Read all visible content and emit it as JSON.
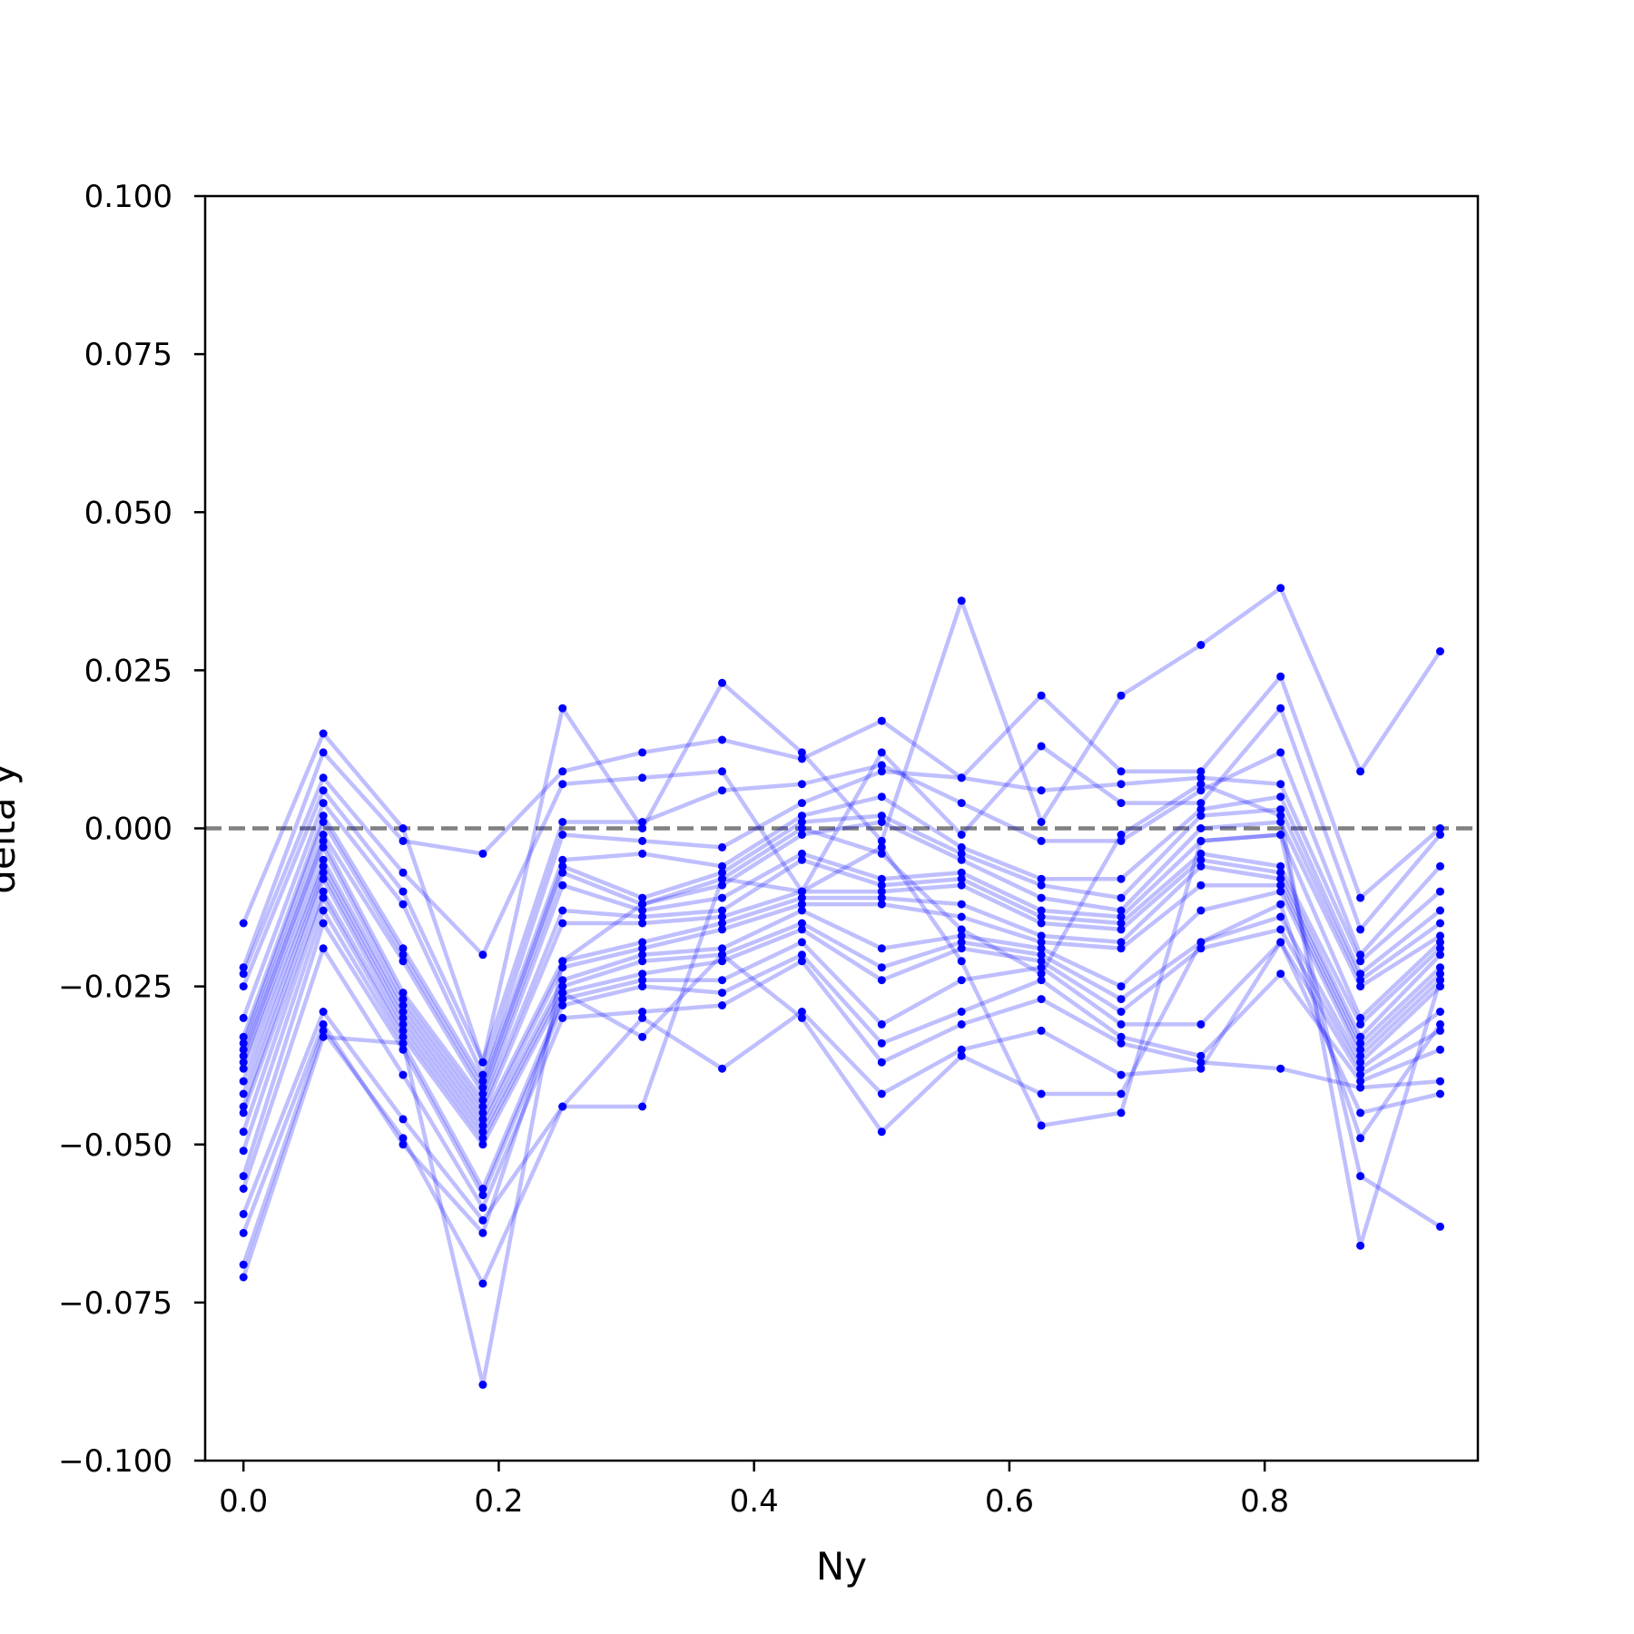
{
  "chart_data": {
    "type": "line",
    "title": "",
    "xlabel": "Ny",
    "ylabel": "delta y",
    "xlim": [
      -0.03,
      0.967
    ],
    "ylim": [
      -0.1,
      0.1
    ],
    "xticks": [
      0.0,
      0.2,
      0.4,
      0.6,
      0.8
    ],
    "xtick_labels": [
      "0.0",
      "0.2",
      "0.4",
      "0.6",
      "0.8"
    ],
    "yticks": [
      -0.1,
      -0.075,
      -0.05,
      -0.025,
      0.0,
      0.025,
      0.05,
      0.075,
      0.1
    ],
    "ytick_labels": [
      "−0.100",
      "−0.075",
      "−0.050",
      "−0.025",
      "0.000",
      "0.025",
      "0.050",
      "0.075",
      "0.100"
    ],
    "reference_line": {
      "y": 0.0,
      "style": "dashed",
      "color": "#808080"
    },
    "series_color": "#0000ff",
    "line_opacity": 0.25,
    "grid": false,
    "legend": "none",
    "x": [
      0.0,
      0.0625,
      0.125,
      0.1875,
      0.25,
      0.3125,
      0.375,
      0.4375,
      0.5,
      0.5625,
      0.625,
      0.6875,
      0.75,
      0.8125,
      0.875,
      0.9375
    ],
    "series": [
      {
        "values": [
          -0.015,
          0.015,
          0.0,
          -0.037,
          0.019,
          0.0,
          0.023,
          0.012,
          -0.002,
          0.036,
          0.001,
          0.021,
          0.029,
          0.038,
          0.009,
          0.028
        ]
      },
      {
        "values": [
          -0.022,
          0.012,
          -0.002,
          -0.004,
          0.009,
          0.012,
          0.014,
          0.011,
          0.017,
          0.008,
          0.021,
          0.009,
          0.009,
          0.024,
          -0.011,
          0.0
        ]
      },
      {
        "values": [
          -0.023,
          0.008,
          -0.007,
          -0.02,
          0.007,
          0.008,
          0.009,
          -0.01,
          0.012,
          -0.001,
          0.013,
          0.004,
          0.004,
          0.019,
          -0.016,
          -0.001
        ]
      },
      {
        "values": [
          -0.025,
          0.006,
          -0.01,
          -0.037,
          0.001,
          0.001,
          0.006,
          0.007,
          0.01,
          0.004,
          -0.002,
          -0.002,
          0.006,
          0.012,
          -0.02,
          -0.006
        ]
      },
      {
        "values": [
          -0.03,
          0.004,
          -0.012,
          -0.039,
          -0.001,
          -0.002,
          -0.003,
          0.004,
          0.009,
          0.008,
          0.006,
          0.007,
          0.008,
          0.007,
          -0.021,
          -0.01
        ]
      },
      {
        "values": [
          -0.033,
          0.002,
          -0.019,
          -0.04,
          -0.005,
          -0.004,
          -0.006,
          0.002,
          0.005,
          -0.003,
          -0.008,
          -0.008,
          0.003,
          0.005,
          -0.023,
          -0.013
        ]
      },
      {
        "values": [
          -0.034,
          0.001,
          -0.02,
          -0.041,
          -0.006,
          -0.011,
          -0.007,
          0.001,
          0.002,
          -0.004,
          -0.009,
          -0.011,
          0.002,
          0.003,
          -0.024,
          -0.015
        ]
      },
      {
        "values": [
          -0.035,
          -0.001,
          -0.021,
          -0.042,
          -0.007,
          -0.012,
          -0.009,
          -0.001,
          0.001,
          -0.005,
          -0.011,
          -0.013,
          0.0,
          0.001,
          -0.025,
          -0.017
        ]
      },
      {
        "values": [
          -0.036,
          -0.002,
          -0.026,
          -0.043,
          -0.009,
          -0.013,
          -0.011,
          -0.004,
          -0.008,
          -0.007,
          -0.013,
          -0.014,
          -0.002,
          -0.001,
          -0.03,
          -0.018
        ]
      },
      {
        "values": [
          -0.037,
          -0.003,
          -0.027,
          -0.044,
          -0.013,
          -0.014,
          -0.013,
          -0.005,
          -0.009,
          -0.008,
          -0.014,
          -0.015,
          -0.004,
          -0.006,
          -0.031,
          -0.019
        ]
      },
      {
        "values": [
          -0.038,
          -0.005,
          -0.028,
          -0.045,
          -0.015,
          -0.015,
          -0.014,
          -0.01,
          -0.01,
          -0.009,
          -0.015,
          -0.016,
          -0.005,
          -0.007,
          -0.033,
          -0.02
        ]
      },
      {
        "values": [
          -0.04,
          -0.006,
          -0.029,
          -0.046,
          -0.021,
          -0.018,
          -0.015,
          -0.011,
          -0.011,
          -0.012,
          -0.017,
          -0.018,
          -0.006,
          -0.008,
          -0.034,
          -0.022
        ]
      },
      {
        "values": [
          -0.042,
          -0.007,
          -0.03,
          -0.047,
          -0.022,
          -0.019,
          -0.016,
          -0.012,
          -0.012,
          -0.014,
          -0.018,
          -0.019,
          -0.009,
          -0.009,
          -0.035,
          -0.023
        ]
      },
      {
        "values": [
          -0.044,
          -0.008,
          -0.031,
          -0.048,
          -0.024,
          -0.02,
          -0.019,
          -0.013,
          -0.019,
          -0.017,
          -0.019,
          -0.025,
          -0.013,
          -0.01,
          -0.036,
          -0.024
        ]
      },
      {
        "values": [
          -0.045,
          -0.01,
          -0.032,
          -0.049,
          -0.025,
          -0.021,
          -0.02,
          -0.015,
          -0.022,
          -0.018,
          -0.02,
          -0.027,
          -0.018,
          -0.014,
          -0.037,
          -0.025
        ]
      },
      {
        "values": [
          -0.048,
          -0.011,
          -0.033,
          -0.05,
          -0.026,
          -0.023,
          -0.021,
          -0.016,
          -0.024,
          -0.019,
          -0.021,
          -0.029,
          -0.019,
          -0.016,
          -0.038,
          -0.029
        ]
      },
      {
        "values": [
          -0.051,
          -0.013,
          -0.034,
          -0.057,
          -0.027,
          -0.024,
          -0.024,
          -0.018,
          -0.031,
          -0.024,
          -0.022,
          -0.031,
          -0.031,
          -0.018,
          -0.039,
          -0.032
        ]
      },
      {
        "values": [
          -0.055,
          -0.015,
          -0.035,
          -0.058,
          -0.028,
          -0.025,
          -0.026,
          -0.02,
          -0.034,
          -0.029,
          -0.024,
          -0.033,
          -0.036,
          -0.023,
          -0.04,
          -0.035
        ]
      },
      {
        "values": [
          -0.057,
          -0.019,
          -0.039,
          -0.06,
          -0.03,
          -0.029,
          -0.028,
          -0.021,
          -0.037,
          -0.031,
          -0.027,
          -0.034,
          -0.037,
          -0.038,
          -0.041,
          -0.04
        ]
      },
      {
        "values": [
          -0.061,
          -0.029,
          -0.046,
          -0.062,
          -0.044,
          -0.03,
          -0.038,
          -0.029,
          -0.042,
          -0.035,
          -0.032,
          -0.039,
          -0.038,
          -0.018,
          -0.045,
          -0.042
        ]
      },
      {
        "values": [
          -0.064,
          -0.031,
          -0.05,
          -0.064,
          -0.026,
          -0.033,
          -0.02,
          -0.03,
          -0.048,
          -0.036,
          -0.042,
          -0.042,
          -0.018,
          -0.012,
          -0.049,
          -0.031
        ]
      },
      {
        "values": [
          -0.069,
          -0.032,
          -0.049,
          -0.072,
          -0.044,
          -0.044,
          -0.008,
          -0.01,
          -0.003,
          -0.021,
          -0.047,
          -0.045,
          -0.002,
          -0.001,
          -0.055,
          -0.063
        ]
      },
      {
        "values": [
          -0.071,
          -0.033,
          -0.034,
          -0.088,
          -0.021,
          -0.012,
          -0.008,
          0.0,
          -0.004,
          -0.016,
          -0.023,
          -0.001,
          0.007,
          0.002,
          -0.066,
          -0.024
        ]
      }
    ]
  }
}
